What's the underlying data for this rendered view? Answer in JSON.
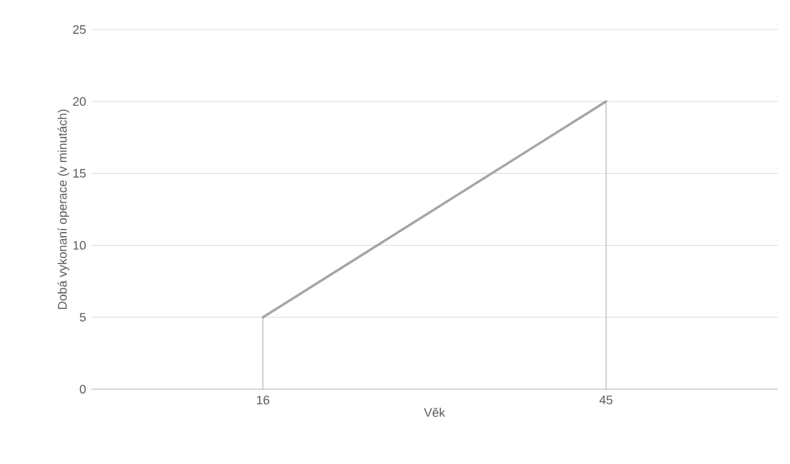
{
  "chart_data": {
    "type": "line",
    "categories": [
      "16",
      "45"
    ],
    "series": [
      {
        "color": "#a5a5a5",
        "values": [
          5,
          20
        ],
        "errors": [
          [
            0,
            5
          ],
          [
            0,
            20
          ]
        ]
      }
    ],
    "xlabel": "Věk",
    "ylabel": "Dobá vykonaní operace (v minutách)",
    "ylim": [
      0,
      25
    ],
    "yticks": [
      0,
      5,
      10,
      15,
      20,
      25
    ],
    "grid": "y",
    "marker": "none",
    "line_style": "solid"
  }
}
